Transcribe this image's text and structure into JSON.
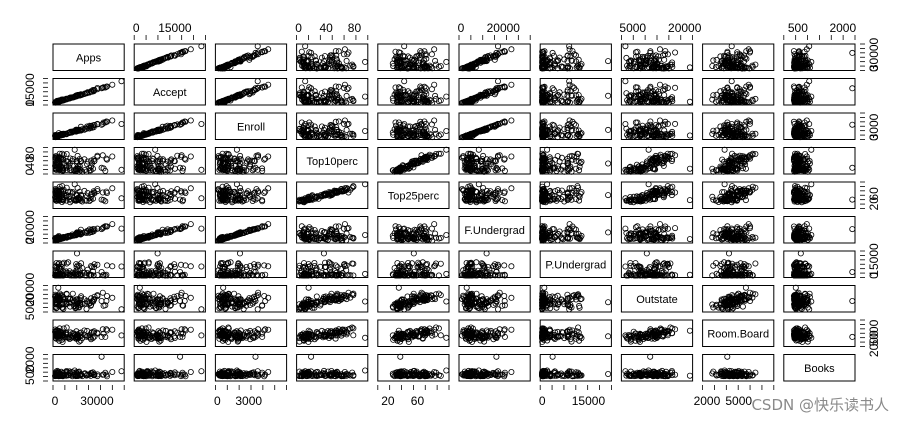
{
  "chart_data": {
    "type": "scatter",
    "variables": [
      "Apps",
      "Accept",
      "Enroll",
      "Top10perc",
      "Top25perc",
      "F.Undergrad",
      "P.Undergrad",
      "Outstate",
      "Room.Board",
      "Books"
    ],
    "ranges": [
      [
        80,
        48000
      ],
      [
        70,
        26000
      ],
      [
        35,
        6400
      ],
      [
        1,
        96
      ],
      [
        9,
        100
      ],
      [
        140,
        31700
      ],
      [
        1,
        21800
      ],
      [
        2300,
        21700
      ],
      [
        1780,
        8120
      ],
      [
        96,
        2340
      ]
    ],
    "ticks": [
      {
        "labels": [
          "0",
          "30000"
        ],
        "values": [
          0,
          30000
        ]
      },
      {
        "labels": [
          "0",
          "15000"
        ],
        "values": [
          0,
          15000
        ]
      },
      {
        "labels": [
          "0",
          "3000"
        ],
        "values": [
          0,
          3000
        ]
      },
      {
        "labels": [
          "0",
          "40",
          "80"
        ],
        "values": [
          0,
          40,
          80
        ]
      },
      {
        "labels": [
          "20",
          "60"
        ],
        "values": [
          20,
          60
        ]
      },
      {
        "labels": [
          "0",
          "20000"
        ],
        "values": [
          0,
          20000
        ]
      },
      {
        "labels": [
          "0",
          "15000"
        ],
        "values": [
          0,
          15000
        ]
      },
      {
        "labels": [
          "5000",
          "20000"
        ],
        "values": [
          5000,
          20000
        ]
      },
      {
        "labels": [
          "2000",
          "5000"
        ],
        "values": [
          2000,
          5000
        ]
      },
      {
        "labels": [
          "500",
          "2000"
        ],
        "values": [
          500,
          2000
        ]
      }
    ],
    "points_per_panel": 110,
    "marker": "open-circle",
    "marker_color": "#000000",
    "layout": "pairs-matrix"
  },
  "watermark": "CSDN @快乐读书人"
}
